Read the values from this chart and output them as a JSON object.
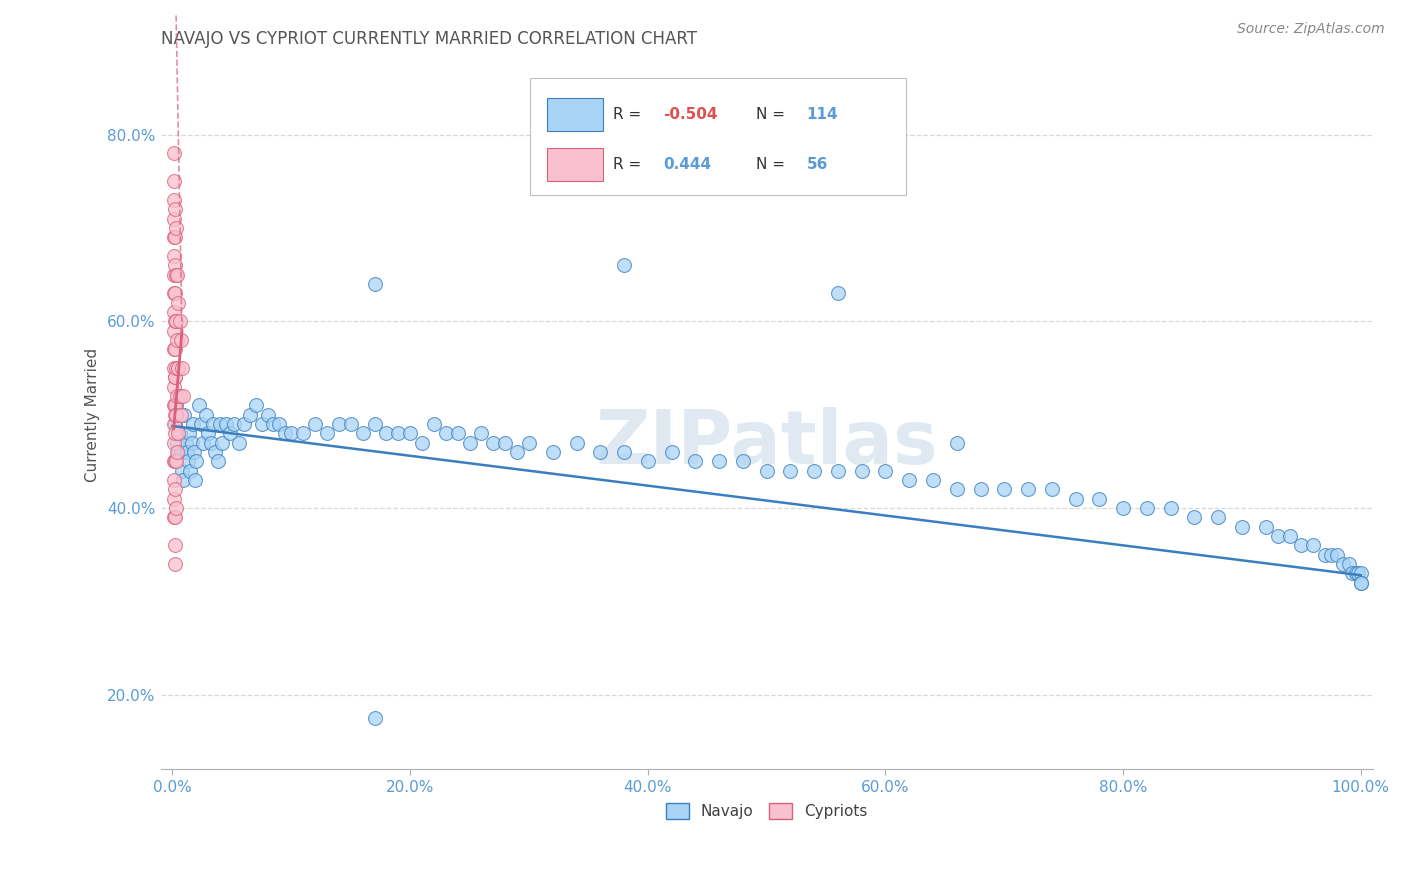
{
  "title": "NAVAJO VS CYPRIOT CURRENTLY MARRIED CORRELATION CHART",
  "source_text": "Source: ZipAtlas.com",
  "ylabel": "Currently Married",
  "watermark": "ZIPatlas",
  "xlim": [
    -0.01,
    1.01
  ],
  "ylim": [
    0.12,
    0.88
  ],
  "xticks": [
    0.0,
    0.2,
    0.4,
    0.6,
    0.8,
    1.0
  ],
  "xtick_labels": [
    "0.0%",
    "20.0%",
    "40.0%",
    "60.0%",
    "80.0%",
    "100.0%"
  ],
  "yticks": [
    0.2,
    0.4,
    0.6,
    0.8
  ],
  "ytick_labels": [
    "20.0%",
    "40.0%",
    "60.0%",
    "80.0%"
  ],
  "navajo_color": "#aad4f5",
  "cypriot_color": "#f9c0d0",
  "navajo_R": -0.504,
  "navajo_N": 114,
  "cypriot_R": 0.444,
  "cypriot_N": 56,
  "legend_navajo_label": "Navajo",
  "legend_cypriot_label": "Cypriots",
  "navajo_line_color": "#3a7ebf",
  "cypriot_line_color": "#d9607a",
  "grid_color": "#d8d8d8",
  "title_color": "#555555",
  "axis_label_color": "#555555",
  "tick_label_color": "#5b9bd5",
  "navajo_x": [
    0.002,
    0.003,
    0.004,
    0.005,
    0.006,
    0.007,
    0.008,
    0.009,
    0.01,
    0.011,
    0.012,
    0.013,
    0.014,
    0.015,
    0.016,
    0.017,
    0.018,
    0.019,
    0.02,
    0.022,
    0.024,
    0.026,
    0.028,
    0.03,
    0.032,
    0.034,
    0.036,
    0.038,
    0.04,
    0.042,
    0.045,
    0.048,
    0.052,
    0.056,
    0.06,
    0.065,
    0.07,
    0.075,
    0.08,
    0.085,
    0.09,
    0.095,
    0.1,
    0.11,
    0.12,
    0.13,
    0.14,
    0.15,
    0.16,
    0.17,
    0.18,
    0.19,
    0.2,
    0.21,
    0.22,
    0.23,
    0.24,
    0.25,
    0.26,
    0.27,
    0.28,
    0.29,
    0.3,
    0.32,
    0.34,
    0.36,
    0.38,
    0.4,
    0.42,
    0.44,
    0.46,
    0.48,
    0.5,
    0.52,
    0.54,
    0.56,
    0.58,
    0.6,
    0.62,
    0.64,
    0.66,
    0.68,
    0.7,
    0.72,
    0.74,
    0.76,
    0.78,
    0.8,
    0.82,
    0.84,
    0.86,
    0.88,
    0.9,
    0.92,
    0.93,
    0.94,
    0.95,
    0.96,
    0.97,
    0.975,
    0.98,
    0.985,
    0.99,
    0.993,
    0.996,
    0.998,
    1.0,
    1.0,
    1.0,
    0.17,
    0.38,
    0.56,
    0.66,
    0.17
  ],
  "navajo_y": [
    0.49,
    0.51,
    0.47,
    0.46,
    0.48,
    0.46,
    0.44,
    0.43,
    0.5,
    0.47,
    0.46,
    0.45,
    0.48,
    0.44,
    0.47,
    0.49,
    0.46,
    0.43,
    0.45,
    0.51,
    0.49,
    0.47,
    0.5,
    0.48,
    0.47,
    0.49,
    0.46,
    0.45,
    0.49,
    0.47,
    0.49,
    0.48,
    0.49,
    0.47,
    0.49,
    0.5,
    0.51,
    0.49,
    0.5,
    0.49,
    0.49,
    0.48,
    0.48,
    0.48,
    0.49,
    0.48,
    0.49,
    0.49,
    0.48,
    0.49,
    0.48,
    0.48,
    0.48,
    0.47,
    0.49,
    0.48,
    0.48,
    0.47,
    0.48,
    0.47,
    0.47,
    0.46,
    0.47,
    0.46,
    0.47,
    0.46,
    0.46,
    0.45,
    0.46,
    0.45,
    0.45,
    0.45,
    0.44,
    0.44,
    0.44,
    0.44,
    0.44,
    0.44,
    0.43,
    0.43,
    0.42,
    0.42,
    0.42,
    0.42,
    0.42,
    0.41,
    0.41,
    0.4,
    0.4,
    0.4,
    0.39,
    0.39,
    0.38,
    0.38,
    0.37,
    0.37,
    0.36,
    0.36,
    0.35,
    0.35,
    0.35,
    0.34,
    0.34,
    0.33,
    0.33,
    0.33,
    0.33,
    0.32,
    0.32,
    0.64,
    0.66,
    0.63,
    0.47,
    0.175
  ],
  "cypriot_x": [
    0.001,
    0.001,
    0.001,
    0.001,
    0.001,
    0.001,
    0.001,
    0.001,
    0.001,
    0.001,
    0.001,
    0.001,
    0.001,
    0.001,
    0.001,
    0.001,
    0.001,
    0.001,
    0.001,
    0.001,
    0.002,
    0.002,
    0.002,
    0.002,
    0.002,
    0.002,
    0.002,
    0.002,
    0.002,
    0.002,
    0.002,
    0.002,
    0.002,
    0.002,
    0.002,
    0.002,
    0.003,
    0.003,
    0.003,
    0.003,
    0.003,
    0.003,
    0.003,
    0.004,
    0.004,
    0.004,
    0.004,
    0.005,
    0.005,
    0.005,
    0.006,
    0.006,
    0.007,
    0.007,
    0.008,
    0.009
  ],
  "cypriot_y": [
    0.78,
    0.75,
    0.73,
    0.71,
    0.69,
    0.67,
    0.65,
    0.63,
    0.61,
    0.59,
    0.57,
    0.55,
    0.53,
    0.51,
    0.49,
    0.47,
    0.45,
    0.43,
    0.41,
    0.39,
    0.72,
    0.69,
    0.66,
    0.63,
    0.6,
    0.57,
    0.54,
    0.51,
    0.48,
    0.45,
    0.42,
    0.39,
    0.36,
    0.34,
    0.54,
    0.5,
    0.7,
    0.65,
    0.6,
    0.55,
    0.5,
    0.45,
    0.4,
    0.65,
    0.58,
    0.52,
    0.46,
    0.62,
    0.55,
    0.48,
    0.6,
    0.52,
    0.58,
    0.5,
    0.55,
    0.52
  ],
  "cypriot_line_slope": 15.0,
  "cypriot_line_intercept": 0.47,
  "navajo_line_x0": 0.0,
  "navajo_line_y0": 0.488,
  "navajo_line_x1": 1.0,
  "navajo_line_y1": 0.328
}
